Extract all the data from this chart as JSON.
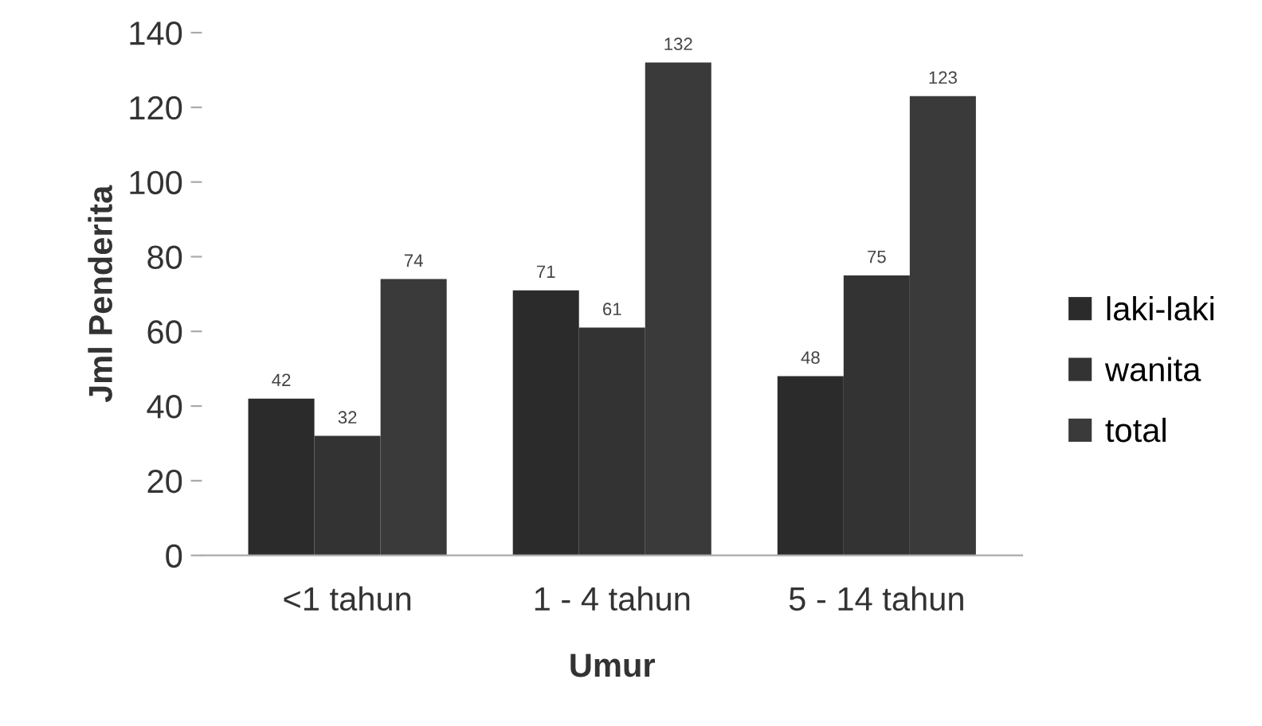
{
  "chart_data": {
    "type": "bar",
    "xlabel": "Umur",
    "ylabel": "Jml Penderita",
    "categories": [
      "<1 tahun",
      "1 - 4 tahun",
      "5 - 14 tahun"
    ],
    "series": [
      {
        "name": "laki-laki",
        "color": "#2b2b2b",
        "values": [
          42,
          71,
          48
        ]
      },
      {
        "name": "wanita",
        "color": "#333333",
        "values": [
          32,
          61,
          75
        ]
      },
      {
        "name": "total",
        "color": "#3a3a3a",
        "values": [
          74,
          132,
          123
        ]
      }
    ],
    "ylim": [
      0,
      140
    ],
    "yticks": [
      0,
      20,
      40,
      60,
      80,
      100,
      120,
      140
    ],
    "data_labels": true,
    "grid": false,
    "legend": "right"
  }
}
